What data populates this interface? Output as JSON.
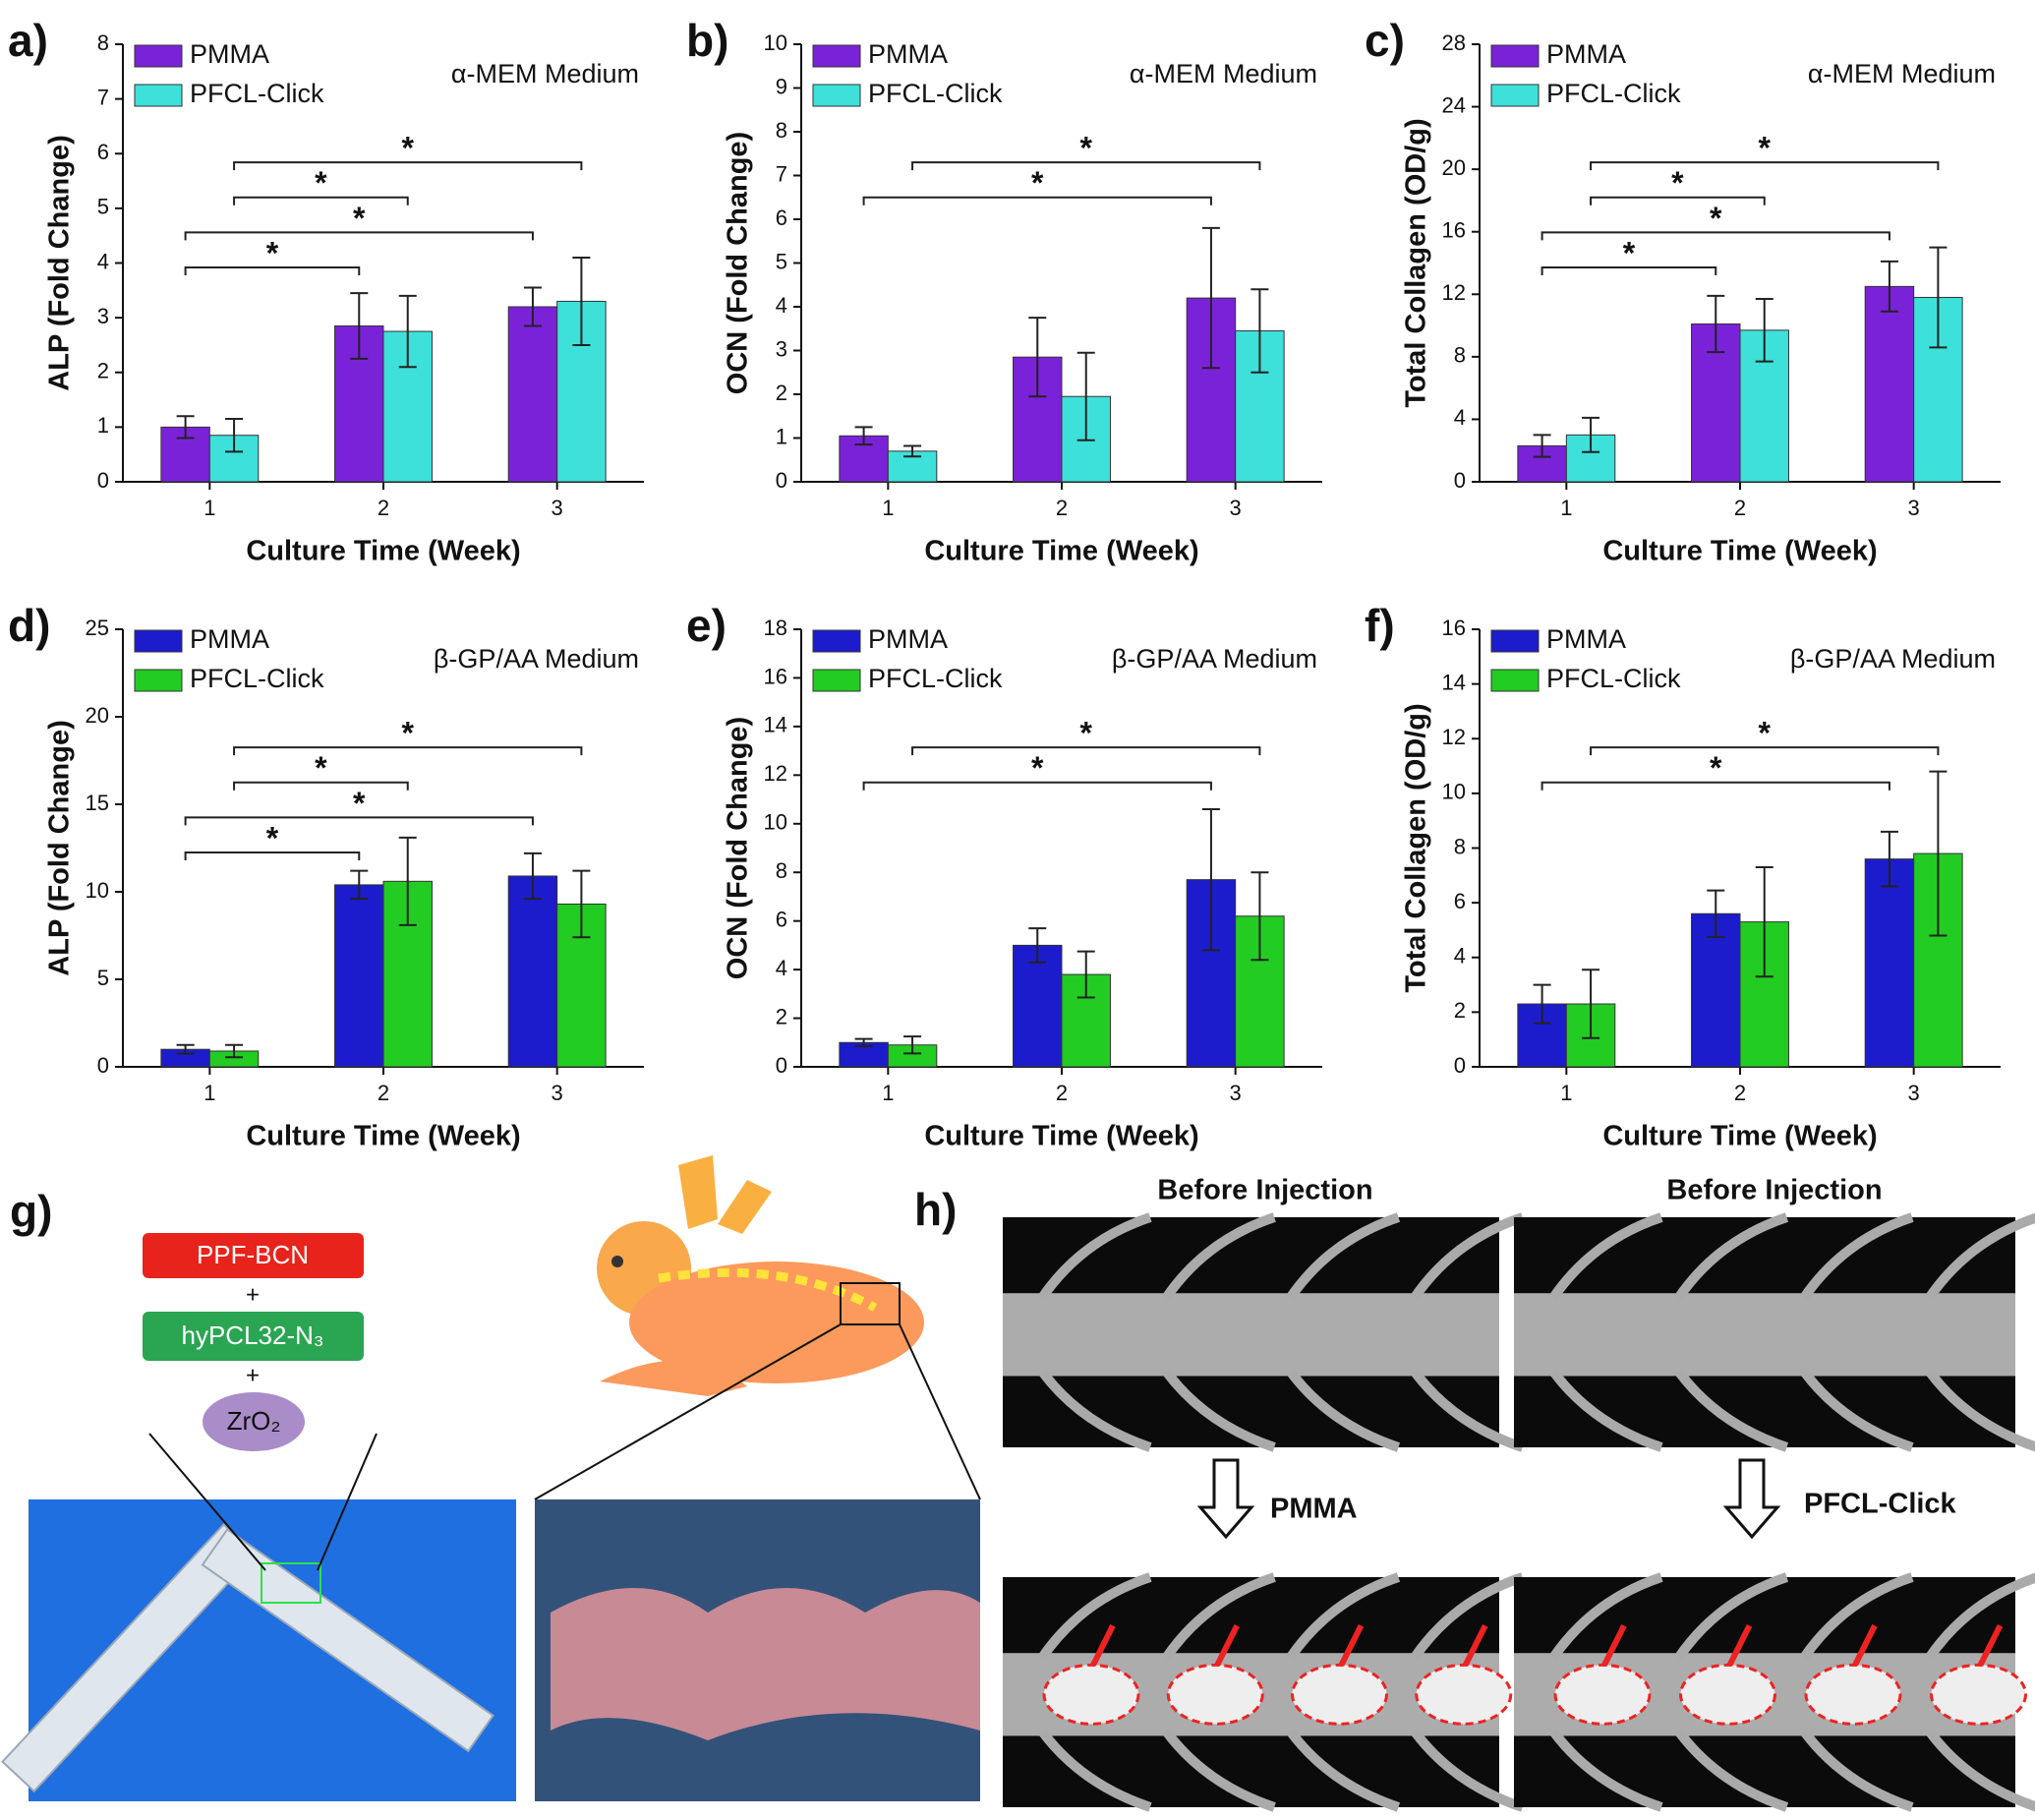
{
  "chart_data": [
    {
      "type": "bar",
      "panel_label": "a)",
      "annotation": "α-MEM Medium",
      "ylabel": "ALP (Fold Change)",
      "xlabel": "Culture Time (Week)",
      "categories": [
        "1",
        "2",
        "3"
      ],
      "ylim": [
        0,
        8
      ],
      "yticks": [
        0,
        1,
        2,
        3,
        4,
        5,
        6,
        7,
        8
      ],
      "series": [
        {
          "name": "PMMA",
          "color": "#7a22d8",
          "values": [
            1.0,
            2.85,
            3.2
          ],
          "errors": [
            0.2,
            0.6,
            0.35
          ]
        },
        {
          "name": "PFCL-Click",
          "color": "#3ee0da",
          "values": [
            0.85,
            2.75,
            3.3
          ],
          "errors": [
            0.3,
            0.65,
            0.8
          ]
        }
      ],
      "significance": [
        {
          "series": "PMMA",
          "from": "1",
          "to": "2",
          "label": "*"
        },
        {
          "series": "PMMA",
          "from": "1",
          "to": "3",
          "label": "*"
        },
        {
          "series": "PFCL-Click",
          "from": "1",
          "to": "2",
          "label": "*"
        },
        {
          "series": "PFCL-Click",
          "from": "1",
          "to": "3",
          "label": "*"
        }
      ]
    },
    {
      "type": "bar",
      "panel_label": "b)",
      "annotation": "α-MEM Medium",
      "ylabel": "OCN (Fold Change)",
      "xlabel": "Culture Time (Week)",
      "categories": [
        "1",
        "2",
        "3"
      ],
      "ylim": [
        0,
        10
      ],
      "yticks": [
        0,
        1,
        2,
        3,
        4,
        5,
        6,
        7,
        8,
        9,
        10
      ],
      "series": [
        {
          "name": "PMMA",
          "color": "#7a22d8",
          "values": [
            1.05,
            2.85,
            4.2
          ],
          "errors": [
            0.2,
            0.9,
            1.6
          ]
        },
        {
          "name": "PFCL-Click",
          "color": "#3ee0da",
          "values": [
            0.7,
            1.95,
            3.45
          ],
          "errors": [
            0.12,
            1.0,
            0.95
          ]
        }
      ],
      "significance": [
        {
          "series": "PMMA",
          "from": "1",
          "to": "3",
          "label": "*"
        },
        {
          "series": "PFCL-Click",
          "from": "1",
          "to": "3",
          "label": "*"
        }
      ]
    },
    {
      "type": "bar",
      "panel_label": "c)",
      "annotation": "α-MEM Medium",
      "ylabel": "Total Collagen (OD/g)",
      "xlabel": "Culture Time (Week)",
      "categories": [
        "1",
        "2",
        "3"
      ],
      "ylim": [
        0,
        28
      ],
      "yticks": [
        0,
        4,
        8,
        12,
        16,
        20,
        24,
        28
      ],
      "series": [
        {
          "name": "PMMA",
          "color": "#7a22d8",
          "values": [
            2.3,
            10.1,
            12.5
          ],
          "errors": [
            0.7,
            1.8,
            1.6
          ]
        },
        {
          "name": "PFCL-Click",
          "color": "#3ee0da",
          "values": [
            3.0,
            9.7,
            11.8
          ],
          "errors": [
            1.1,
            2.0,
            3.2
          ]
        }
      ],
      "significance": [
        {
          "series": "PMMA",
          "from": "1",
          "to": "2",
          "label": "*"
        },
        {
          "series": "PMMA",
          "from": "1",
          "to": "3",
          "label": "*"
        },
        {
          "series": "PFCL-Click",
          "from": "1",
          "to": "2",
          "label": "*"
        },
        {
          "series": "PFCL-Click",
          "from": "1",
          "to": "3",
          "label": "*"
        }
      ]
    },
    {
      "type": "bar",
      "panel_label": "d)",
      "annotation": "β-GP/AA Medium",
      "ylabel": "ALP (Fold Change)",
      "xlabel": "Culture Time (Week)",
      "categories": [
        "1",
        "2",
        "3"
      ],
      "ylim": [
        0,
        25
      ],
      "yticks": [
        0,
        5,
        10,
        15,
        20,
        25
      ],
      "series": [
        {
          "name": "PMMA",
          "color": "#1c1ccc",
          "values": [
            1.0,
            10.4,
            10.9
          ],
          "errors": [
            0.25,
            0.8,
            1.3
          ]
        },
        {
          "name": "PFCL-Click",
          "color": "#22cc22",
          "values": [
            0.9,
            10.6,
            9.3
          ],
          "errors": [
            0.35,
            2.5,
            1.9
          ]
        }
      ],
      "significance": [
        {
          "series": "PMMA",
          "from": "1",
          "to": "2",
          "label": "*"
        },
        {
          "series": "PMMA",
          "from": "1",
          "to": "3",
          "label": "*"
        },
        {
          "series": "PFCL-Click",
          "from": "1",
          "to": "2",
          "label": "*"
        },
        {
          "series": "PFCL-Click",
          "from": "1",
          "to": "3",
          "label": "*"
        }
      ]
    },
    {
      "type": "bar",
      "panel_label": "e)",
      "annotation": "β-GP/AA Medium",
      "ylabel": "OCN (Fold Change)",
      "xlabel": "Culture Time (Week)",
      "categories": [
        "1",
        "2",
        "3"
      ],
      "ylim": [
        0,
        18
      ],
      "yticks": [
        0,
        2,
        4,
        6,
        8,
        10,
        12,
        14,
        16,
        18
      ],
      "series": [
        {
          "name": "PMMA",
          "color": "#1c1ccc",
          "values": [
            1.0,
            5.0,
            7.7
          ],
          "errors": [
            0.15,
            0.7,
            2.9
          ]
        },
        {
          "name": "PFCL-Click",
          "color": "#22cc22",
          "values": [
            0.9,
            3.8,
            6.2
          ],
          "errors": [
            0.35,
            0.95,
            1.8
          ]
        }
      ],
      "significance": [
        {
          "series": "PMMA",
          "from": "1",
          "to": "3",
          "label": "*"
        },
        {
          "series": "PFCL-Click",
          "from": "1",
          "to": "3",
          "label": "*"
        }
      ]
    },
    {
      "type": "bar",
      "panel_label": "f)",
      "annotation": "β-GP/AA Medium",
      "ylabel": "Total Collagen (OD/g)",
      "xlabel": "Culture Time (Week)",
      "categories": [
        "1",
        "2",
        "3"
      ],
      "ylim": [
        0,
        16
      ],
      "yticks": [
        0,
        2,
        4,
        6,
        8,
        10,
        12,
        14,
        16
      ],
      "series": [
        {
          "name": "PMMA",
          "color": "#1c1ccc",
          "values": [
            2.3,
            5.6,
            7.6
          ],
          "errors": [
            0.7,
            0.85,
            1.0
          ]
        },
        {
          "name": "PFCL-Click",
          "color": "#22cc22",
          "values": [
            2.3,
            5.3,
            7.8
          ],
          "errors": [
            1.25,
            2.0,
            3.0
          ]
        }
      ],
      "significance": [
        {
          "series": "PMMA",
          "from": "1",
          "to": "3",
          "label": "*"
        },
        {
          "series": "PFCL-Click",
          "from": "1",
          "to": "3",
          "label": "*"
        }
      ]
    }
  ],
  "panel_g": {
    "label": "g)",
    "components": [
      "PPF-BCN",
      "+",
      "hyPCL32-N₃",
      "+",
      "ZrO₂"
    ]
  },
  "panel_h": {
    "label": "h)",
    "before": [
      "Before Injection",
      "Before Injection"
    ],
    "groups": [
      "PMMA",
      "PFCL-Click"
    ]
  }
}
